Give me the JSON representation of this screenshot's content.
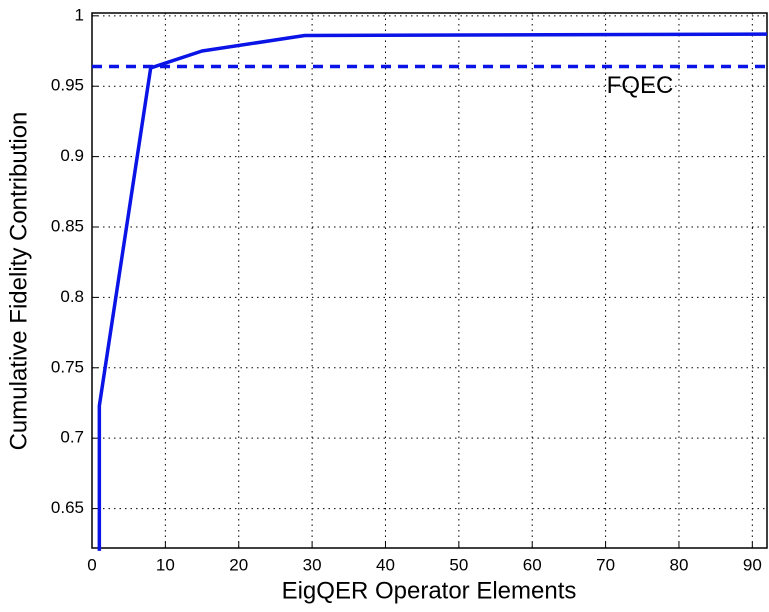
{
  "chart_data": {
    "type": "line",
    "xlabel": "EigQER Operator Elements",
    "ylabel": "Cumulative Fidelity Contribution",
    "x": [
      1,
      1,
      8,
      15,
      29,
      92
    ],
    "values": [
      0.62,
      0.723,
      0.963,
      0.975,
      0.986,
      0.987
    ],
    "color": "#0a14e6",
    "reference_line": {
      "value": 0.964,
      "label": "FQEC",
      "color": "#0a14e6"
    },
    "xlim": [
      0,
      92
    ],
    "ylim": [
      0.622,
      1.002
    ],
    "xticks": [
      0,
      10,
      20,
      30,
      40,
      50,
      60,
      70,
      80,
      90
    ],
    "yticks": [
      0.65,
      0.7,
      0.75,
      0.8,
      0.85,
      0.9,
      0.95,
      1
    ],
    "grid": true
  }
}
